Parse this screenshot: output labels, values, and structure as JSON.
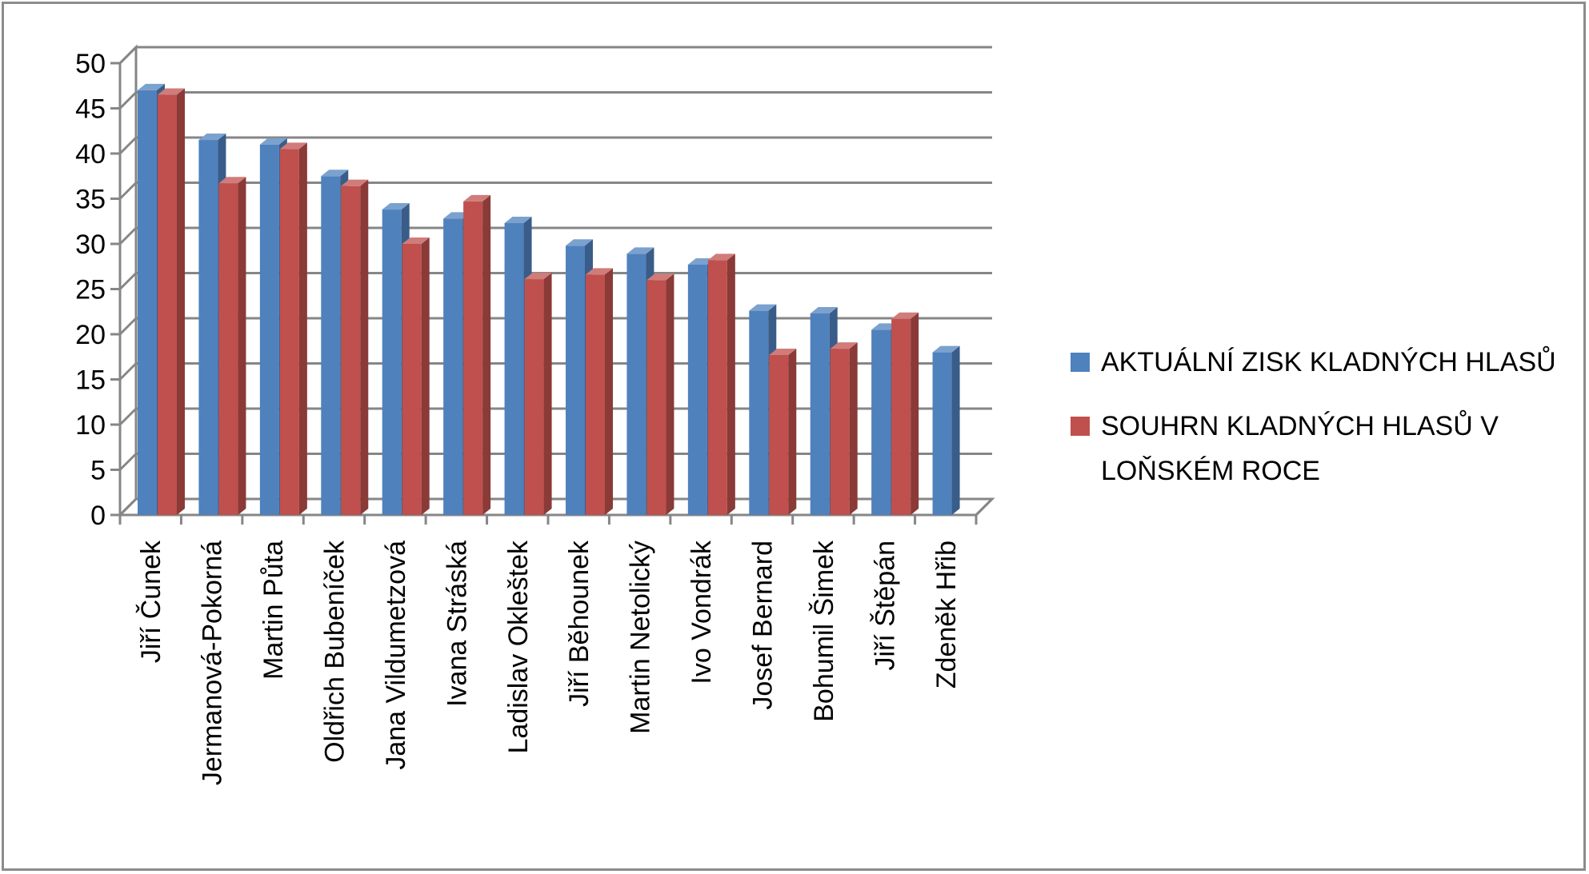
{
  "chart_data": {
    "type": "bar",
    "title": "",
    "xlabel": "",
    "ylabel": "",
    "ylim": [
      0,
      50
    ],
    "yticks": [
      0,
      5,
      10,
      15,
      20,
      25,
      30,
      35,
      40,
      45,
      50
    ],
    "grid": true,
    "three_d": true,
    "legend_position": "right",
    "categories": [
      "Jiří Čunek",
      "Jermanová-Pokorná",
      "Martin Půta",
      "Oldřich Bubeníček",
      "Jana Vildumetzová",
      "Ivana Stráská",
      "Ladislav Okleštek",
      "Jiří Běhounek",
      "Martin Netolický",
      "Ivo Vondrák",
      "Josef Bernard",
      "Bohumil Šimek",
      "Jiří Štěpán",
      "Zdeněk Hřib"
    ],
    "series": [
      {
        "name": "AKTUÁLNÍ ZISK KLADNÝCH HLASŮ",
        "color": "#4f81bd",
        "values": [
          47,
          41.5,
          41,
          37.5,
          33.8,
          32.8,
          32.3,
          29.8,
          28.9,
          27.7,
          22.6,
          22.3,
          20.5,
          18
        ]
      },
      {
        "name": "SOUHRN KLADNÝCH HLASŮ V LOŇSKÉM ROCE",
        "color": "#c0504d",
        "values": [
          46.5,
          36.7,
          40.5,
          36.4,
          30,
          34.7,
          26.1,
          26.6,
          26,
          28.2,
          17.7,
          18.4,
          21.7,
          null
        ]
      }
    ]
  }
}
